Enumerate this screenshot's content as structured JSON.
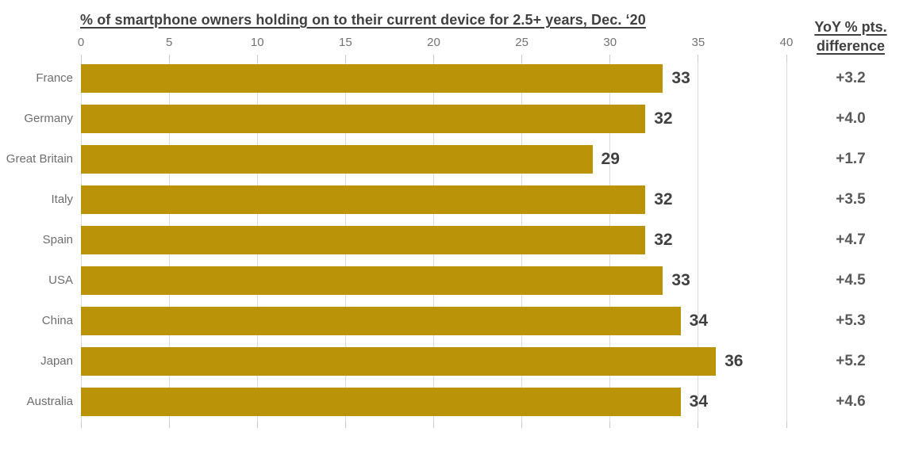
{
  "chart_data": {
    "type": "bar",
    "orientation": "horizontal",
    "title": "% of smartphone owners holding on to their current device for 2.5+ years, Dec. ‘20",
    "categories": [
      "France",
      "Germany",
      "Great Britain",
      "Italy",
      "Spain",
      "USA",
      "China",
      "Japan",
      "Australia"
    ],
    "values": [
      33,
      32,
      29,
      32,
      32,
      33,
      34,
      36,
      34
    ],
    "data_labels": [
      "33",
      "32",
      "29",
      "32",
      "32",
      "33",
      "34",
      "36",
      "34"
    ],
    "xlim": [
      0,
      40
    ],
    "x_ticks": [
      0,
      5,
      10,
      15,
      20,
      25,
      30,
      35,
      40
    ],
    "grid": "vertical-gridlines-on",
    "legend": "none",
    "yoy_column": {
      "header_line1": "YoY % pts.",
      "header_line2": "difference",
      "values": [
        "+3.2",
        "+4.0",
        "+1.7",
        "+3.5",
        "+4.7",
        "+4.5",
        "+5.3",
        "+5.2",
        "+4.6"
      ]
    }
  },
  "colors": {
    "bar": "#BA9309",
    "title_text": "#404040",
    "value_label_text": "#404040",
    "category_label_text": "#6E6E6E",
    "tick_label_text": "#737373",
    "yoy_value_text": "#595959",
    "gridline": "#DBDBDB",
    "tick_mark": "#C9C9C9"
  }
}
